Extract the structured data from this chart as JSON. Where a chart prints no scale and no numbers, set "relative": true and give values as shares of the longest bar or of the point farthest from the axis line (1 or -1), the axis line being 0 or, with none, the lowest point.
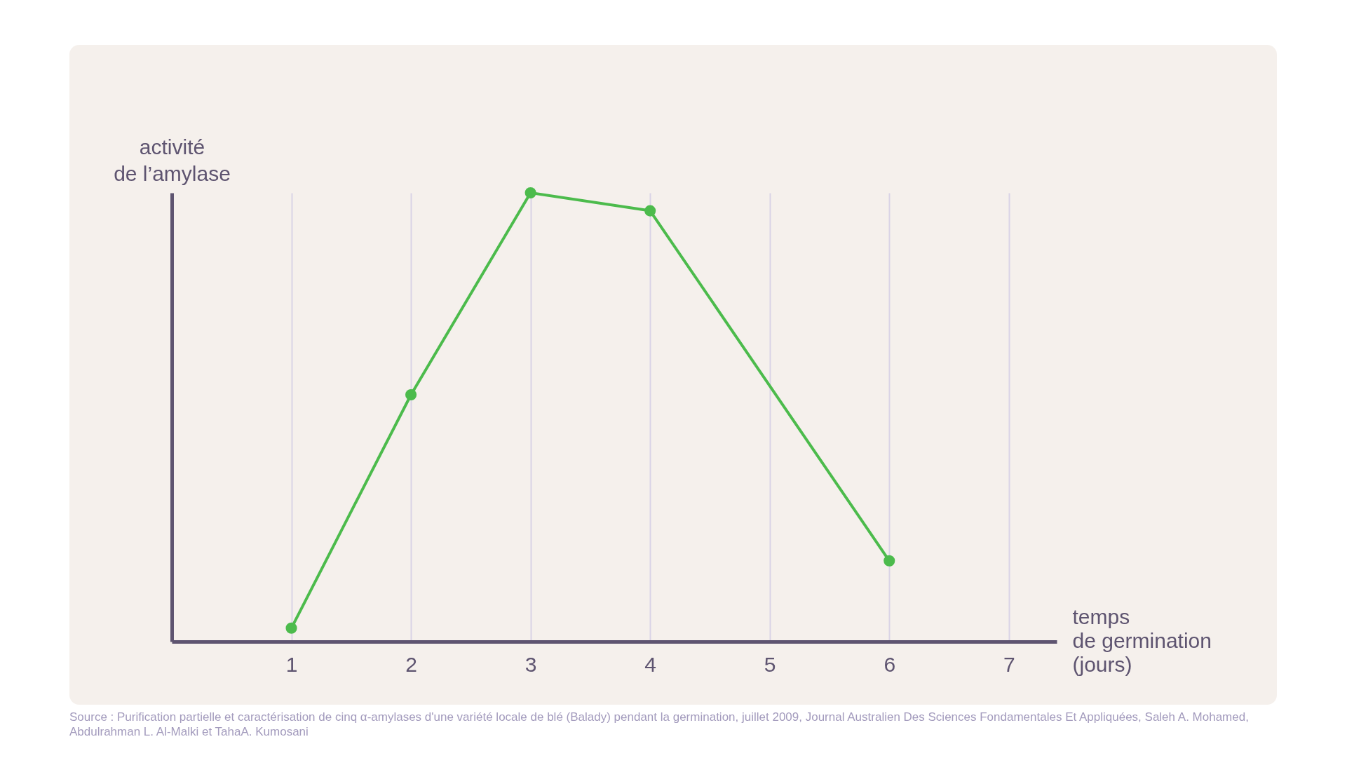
{
  "chart_data": {
    "type": "line",
    "ylabel": "activité\nde l’amylase",
    "xlabel": "temps\nde germination\n(jours)",
    "x": [
      1,
      2,
      3,
      4,
      6
    ],
    "series": [
      {
        "color": "#4cbb4c",
        "values": [
          0.03,
          0.55,
          1,
          0.96,
          0.18
        ]
      }
    ],
    "relative": true,
    "xlim": [
      0,
      7.4
    ],
    "xticks": [
      1,
      2,
      3,
      4,
      5,
      6,
      7
    ],
    "grid": "x",
    "marker": "circle",
    "line_style": "solid",
    "annotations": [
      "Source : Purification partielle et caractérisation de cinq α-amylases d'une variété locale de blé (Balady) pendant la germination, juillet 2009, Journal Australien Des Sciences Fondamentales Et Appliquées, Saleh A. Mohamed, Abdulrahman L. Al-Malki et TahaA. Kumosani"
    ]
  }
}
